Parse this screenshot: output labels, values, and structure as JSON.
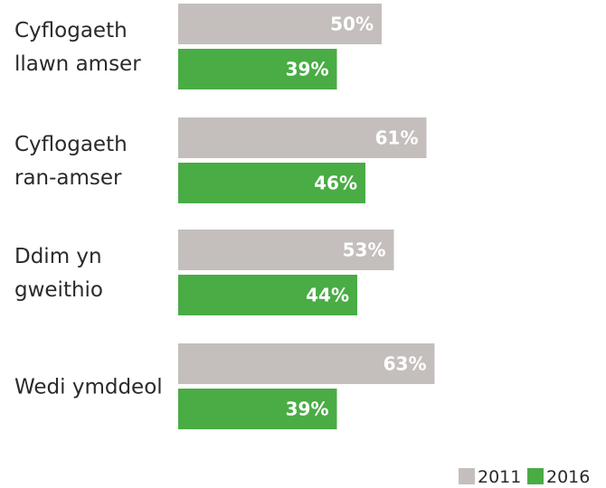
{
  "chart_data": {
    "type": "bar",
    "orientation": "horizontal",
    "categories": [
      [
        "Cyflogaeth",
        "llawn amser"
      ],
      [
        "Cyflogaeth",
        "ran-amser"
      ],
      [
        "Ddim yn",
        "gweithio"
      ],
      [
        "Wedi ymddeol"
      ]
    ],
    "series": [
      {
        "name": "2011",
        "color": "#c4bfbc",
        "values": [
          50,
          61,
          53,
          63
        ],
        "labels": [
          "50%",
          "61%",
          "53%",
          "63%"
        ]
      },
      {
        "name": "2016",
        "color": "#4aac45",
        "values": [
          39,
          46,
          44,
          39
        ],
        "labels": [
          "39%",
          "46%",
          "44%",
          "39%"
        ]
      }
    ],
    "xlim": [
      0,
      100
    ],
    "grid": false,
    "legend": "bottom-right",
    "title": "",
    "xlabel": "",
    "ylabel": ""
  }
}
